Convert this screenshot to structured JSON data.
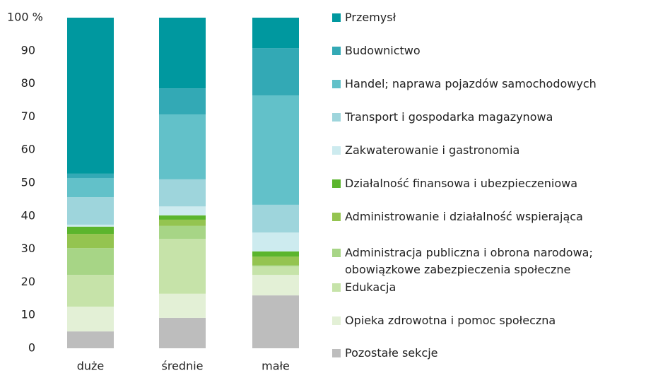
{
  "chart_data": {
    "type": "stacked-bar",
    "categories": [
      "duże",
      "średnie",
      "małe"
    ],
    "ylim": [
      0,
      100
    ],
    "yticks": [
      0,
      10,
      20,
      30,
      40,
      50,
      60,
      70,
      80,
      90,
      {
        "value": 100,
        "label": "100 %"
      }
    ],
    "series": [
      {
        "name": "Pozostałe sekcje",
        "color": "#bdbdbd",
        "values": [
          5.1,
          9.2,
          16.0
        ]
      },
      {
        "name": "Opieka zdrowotna i pomoc społeczna",
        "color": "#e3f0d6",
        "values": [
          7.5,
          7.3,
          6.2
        ]
      },
      {
        "name": "Edukacja",
        "color": "#c6e3a9",
        "values": [
          9.6,
          16.6,
          2.6
        ]
      },
      {
        "name": "Administracja publiczna i obrona narodowa; obowiązkowe zabezpieczenia społeczne",
        "color": "#a7d586",
        "values": [
          8.1,
          3.9,
          0.3
        ]
      },
      {
        "name": "Administrowanie i działalność wspierająca",
        "color": "#94c450",
        "values": [
          4.3,
          1.9,
          2.6
        ]
      },
      {
        "name": "Działalność finansowa i ubezpieczeniowa",
        "color": "#5bb52d",
        "values": [
          2.2,
          1.3,
          1.6
        ]
      },
      {
        "name": "Zakwaterowanie i gastronomia",
        "color": "#cdebef",
        "values": [
          0.6,
          2.7,
          5.7
        ]
      },
      {
        "name": "Transport i gospodarka magazynowa",
        "color": "#9ed5dc",
        "values": [
          8.3,
          8.2,
          8.4
        ]
      },
      {
        "name": "Handel; naprawa pojazdów samochodowych",
        "color": "#62c1c9",
        "values": [
          5.8,
          19.6,
          33.1
        ]
      },
      {
        "name": "Budownictwo",
        "color": "#33a9b5",
        "values": [
          1.3,
          7.9,
          14.3
        ]
      },
      {
        "name": "Przemysł",
        "color": "#00989f",
        "values": [
          47.2,
          21.4,
          9.2
        ]
      }
    ]
  }
}
